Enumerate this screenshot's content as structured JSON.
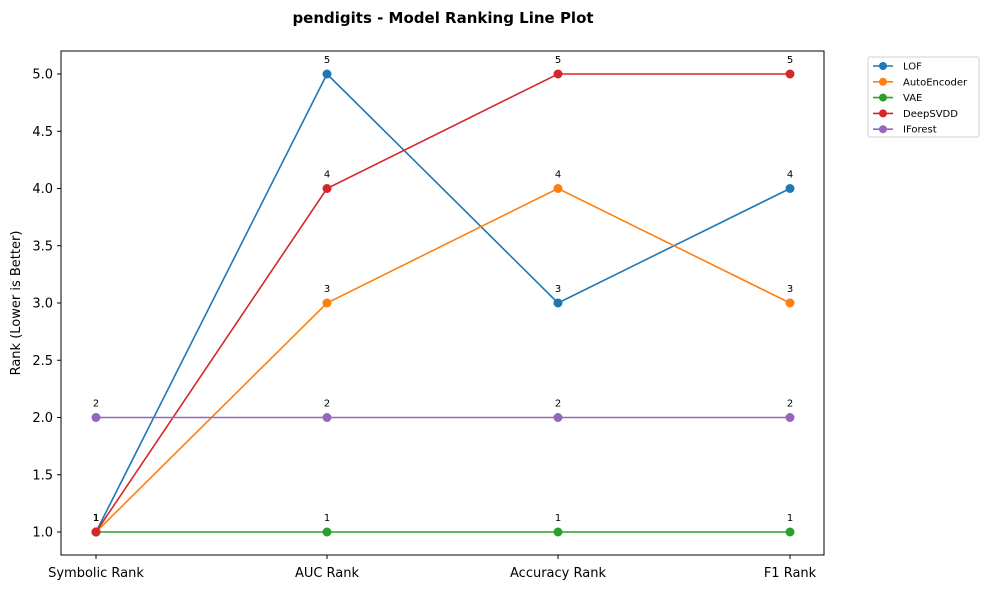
{
  "chart_data": {
    "type": "line",
    "title": "pendigits - Model Ranking Line Plot",
    "xlabel": "",
    "ylabel": "Rank (Lower is Better)",
    "categories": [
      "Symbolic Rank",
      "AUC Rank",
      "Accuracy Rank",
      "F1 Rank"
    ],
    "ylim": [
      0.8,
      5.2
    ],
    "yticks": [
      "1.0",
      "1.5",
      "2.0",
      "2.5",
      "3.0",
      "3.5",
      "4.0",
      "4.5",
      "5.0"
    ],
    "grid": false,
    "legend_position": "outside-top-right",
    "series": [
      {
        "name": "LOF",
        "color": "#1f77b4",
        "values": [
          1,
          5,
          3,
          4
        ]
      },
      {
        "name": "AutoEncoder",
        "color": "#ff7f0e",
        "values": [
          1,
          3,
          4,
          3
        ]
      },
      {
        "name": "VAE",
        "color": "#2ca02c",
        "values": [
          1,
          1,
          1,
          1
        ]
      },
      {
        "name": "DeepSVDD",
        "color": "#d62728",
        "values": [
          1,
          4,
          5,
          5
        ]
      },
      {
        "name": "IForest",
        "color": "#9467bd",
        "values": [
          2,
          2,
          2,
          2
        ]
      }
    ]
  }
}
